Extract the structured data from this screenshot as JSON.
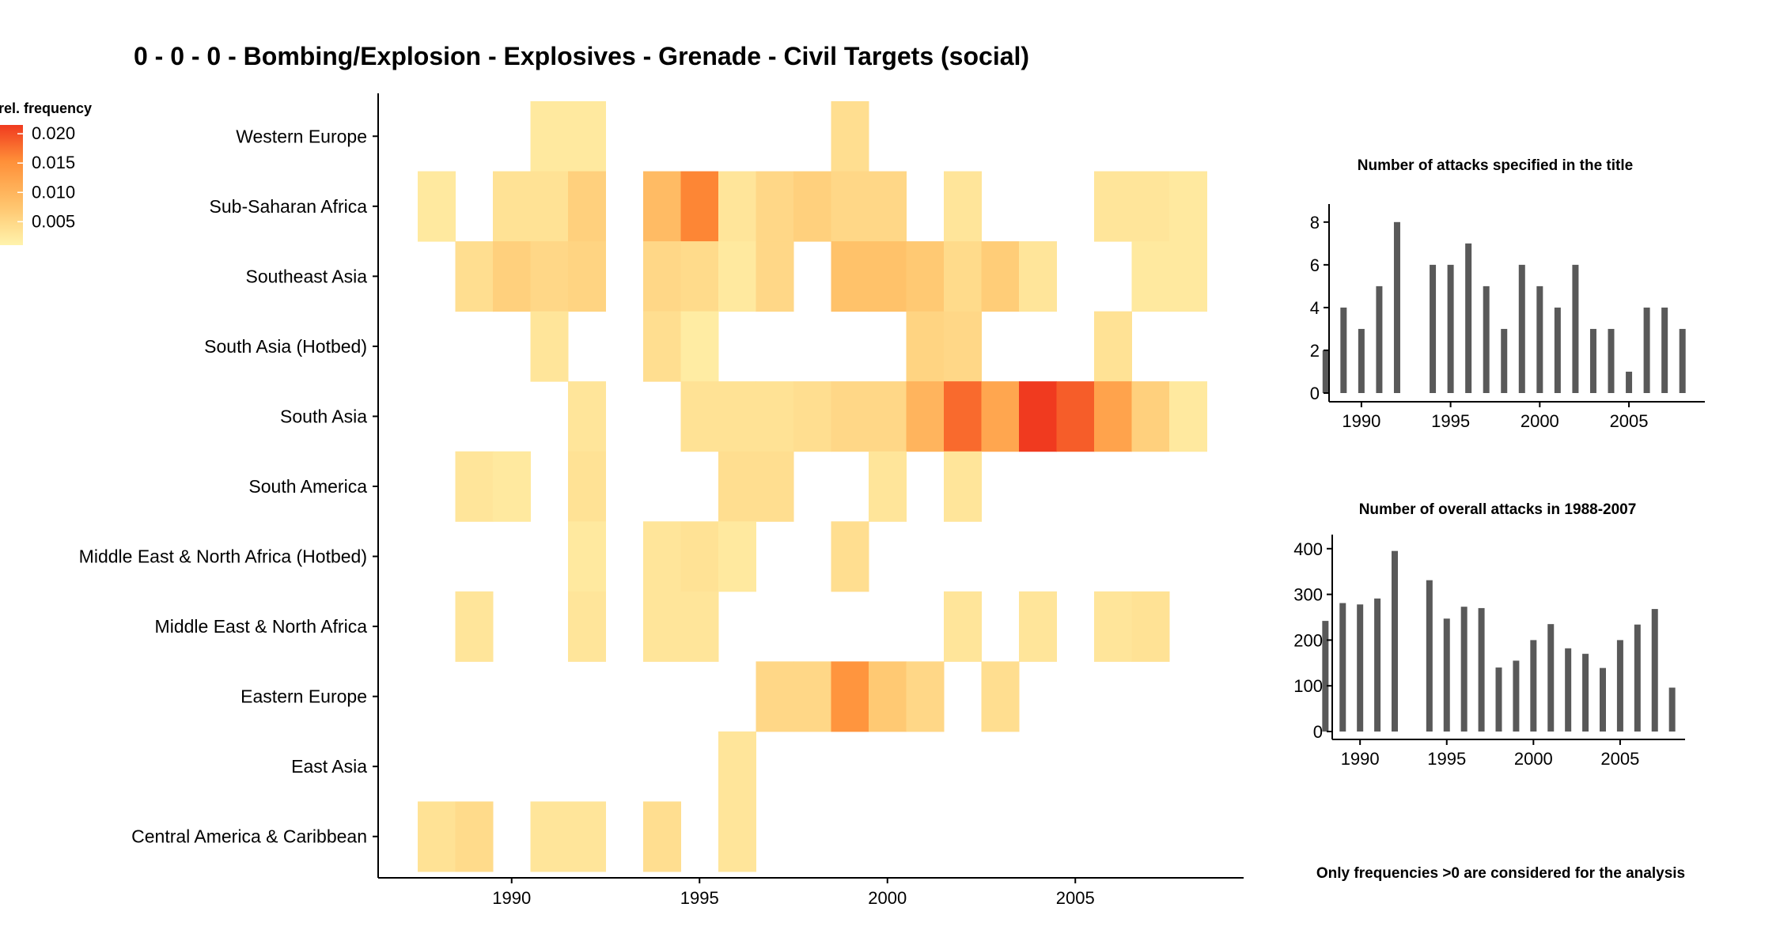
{
  "title": "0 - 0 - 0 - Bombing/Explosion - Explosives - Grenade - Civil Targets (social)",
  "footnote": "Only frequencies >0 are considered for the analysis",
  "colors": {
    "low": "#fff3ad",
    "mid": "#ffc46c",
    "high": "#ff8f38",
    "max": "#f03a1f",
    "bar": "#595959",
    "axis": "#000000"
  },
  "chart_data": [
    {
      "type": "heatmap",
      "name": "region-year-heatmap",
      "title": "0 - 0 - 0 - Bombing/Explosion - Explosives - Grenade - Civil Targets (social)",
      "x_range": [
        1988,
        2008
      ],
      "x_ticks": [
        1990,
        1995,
        2000,
        2005
      ],
      "legend": {
        "title": "rel. frequency",
        "position": "top-left",
        "ticks": [
          0.005,
          0.01,
          0.015,
          0.02
        ],
        "tick_labels": [
          "0.005",
          "0.010",
          "0.015",
          "0.020"
        ],
        "min": 0.001,
        "max": 0.0215
      },
      "regions": [
        "Western Europe",
        "Sub-Saharan Africa",
        "Southeast Asia",
        "South Asia (Hotbed)",
        "South Asia",
        "South America",
        "Middle East & North Africa (Hotbed)",
        "Middle East & North Africa",
        "Eastern Europe",
        "East Asia",
        "Central America & Caribbean"
      ],
      "cells": [
        {
          "region": "Western Europe",
          "year": 1991,
          "value": 0.0025
        },
        {
          "region": "Western Europe",
          "year": 1992,
          "value": 0.0025
        },
        {
          "region": "Western Europe",
          "year": 1999,
          "value": 0.004
        },
        {
          "region": "Sub-Saharan Africa",
          "year": 1988,
          "value": 0.0025
        },
        {
          "region": "Sub-Saharan Africa",
          "year": 1990,
          "value": 0.0035
        },
        {
          "region": "Sub-Saharan Africa",
          "year": 1991,
          "value": 0.0035
        },
        {
          "region": "Sub-Saharan Africa",
          "year": 1992,
          "value": 0.006
        },
        {
          "region": "Sub-Saharan Africa",
          "year": 1994,
          "value": 0.009
        },
        {
          "region": "Sub-Saharan Africa",
          "year": 1995,
          "value": 0.016
        },
        {
          "region": "Sub-Saharan Africa",
          "year": 1996,
          "value": 0.003
        },
        {
          "region": "Sub-Saharan Africa",
          "year": 1997,
          "value": 0.005
        },
        {
          "region": "Sub-Saharan Africa",
          "year": 1998,
          "value": 0.006
        },
        {
          "region": "Sub-Saharan Africa",
          "year": 1999,
          "value": 0.005
        },
        {
          "region": "Sub-Saharan Africa",
          "year": 2000,
          "value": 0.005
        },
        {
          "region": "Sub-Saharan Africa",
          "year": 2002,
          "value": 0.003
        },
        {
          "region": "Sub-Saharan Africa",
          "year": 2006,
          "value": 0.003
        },
        {
          "region": "Sub-Saharan Africa",
          "year": 2007,
          "value": 0.003
        },
        {
          "region": "Sub-Saharan Africa",
          "year": 2008,
          "value": 0.0025
        },
        {
          "region": "Southeast Asia",
          "year": 1989,
          "value": 0.004
        },
        {
          "region": "Southeast Asia",
          "year": 1990,
          "value": 0.006
        },
        {
          "region": "Southeast Asia",
          "year": 1991,
          "value": 0.005
        },
        {
          "region": "Southeast Asia",
          "year": 1992,
          "value": 0.0055
        },
        {
          "region": "Southeast Asia",
          "year": 1994,
          "value": 0.005
        },
        {
          "region": "Southeast Asia",
          "year": 1995,
          "value": 0.0045
        },
        {
          "region": "Southeast Asia",
          "year": 1996,
          "value": 0.0025
        },
        {
          "region": "Southeast Asia",
          "year": 1997,
          "value": 0.005
        },
        {
          "region": "Southeast Asia",
          "year": 1999,
          "value": 0.008
        },
        {
          "region": "Southeast Asia",
          "year": 2000,
          "value": 0.008
        },
        {
          "region": "Southeast Asia",
          "year": 2001,
          "value": 0.007
        },
        {
          "region": "Southeast Asia",
          "year": 2002,
          "value": 0.0045
        },
        {
          "region": "Southeast Asia",
          "year": 2003,
          "value": 0.0065
        },
        {
          "region": "Southeast Asia",
          "year": 2004,
          "value": 0.003
        },
        {
          "region": "Southeast Asia",
          "year": 2007,
          "value": 0.0025
        },
        {
          "region": "Southeast Asia",
          "year": 2008,
          "value": 0.0025
        },
        {
          "region": "South Asia (Hotbed)",
          "year": 1991,
          "value": 0.003
        },
        {
          "region": "South Asia (Hotbed)",
          "year": 1994,
          "value": 0.004
        },
        {
          "region": "South Asia (Hotbed)",
          "year": 1995,
          "value": 0.002
        },
        {
          "region": "South Asia (Hotbed)",
          "year": 2001,
          "value": 0.0055
        },
        {
          "region": "South Asia (Hotbed)",
          "year": 2002,
          "value": 0.005
        },
        {
          "region": "South Asia (Hotbed)",
          "year": 2006,
          "value": 0.0035
        },
        {
          "region": "South Asia",
          "year": 1992,
          "value": 0.003
        },
        {
          "region": "South Asia",
          "year": 1995,
          "value": 0.0035
        },
        {
          "region": "South Asia",
          "year": 1996,
          "value": 0.0035
        },
        {
          "region": "South Asia",
          "year": 1997,
          "value": 0.0035
        },
        {
          "region": "South Asia",
          "year": 1998,
          "value": 0.004
        },
        {
          "region": "South Asia",
          "year": 1999,
          "value": 0.005
        },
        {
          "region": "South Asia",
          "year": 2000,
          "value": 0.005
        },
        {
          "region": "South Asia",
          "year": 2001,
          "value": 0.01
        },
        {
          "region": "South Asia",
          "year": 2002,
          "value": 0.018
        },
        {
          "region": "South Asia",
          "year": 2003,
          "value": 0.012
        },
        {
          "region": "South Asia",
          "year": 2004,
          "value": 0.0215
        },
        {
          "region": "South Asia",
          "year": 2005,
          "value": 0.019
        },
        {
          "region": "South Asia",
          "year": 2006,
          "value": 0.0125
        },
        {
          "region": "South Asia",
          "year": 2007,
          "value": 0.006
        },
        {
          "region": "South Asia",
          "year": 2008,
          "value": 0.0025
        },
        {
          "region": "South America",
          "year": 1989,
          "value": 0.003
        },
        {
          "region": "South America",
          "year": 1990,
          "value": 0.0025
        },
        {
          "region": "South America",
          "year": 1992,
          "value": 0.0035
        },
        {
          "region": "South America",
          "year": 1996,
          "value": 0.004
        },
        {
          "region": "South America",
          "year": 1997,
          "value": 0.004
        },
        {
          "region": "South America",
          "year": 2000,
          "value": 0.003
        },
        {
          "region": "South America",
          "year": 2002,
          "value": 0.003
        },
        {
          "region": "Middle East & North Africa (Hotbed)",
          "year": 1992,
          "value": 0.0025
        },
        {
          "region": "Middle East & North Africa (Hotbed)",
          "year": 1994,
          "value": 0.003
        },
        {
          "region": "Middle East & North Africa (Hotbed)",
          "year": 1995,
          "value": 0.0035
        },
        {
          "region": "Middle East & North Africa (Hotbed)",
          "year": 1996,
          "value": 0.0025
        },
        {
          "region": "Middle East & North Africa (Hotbed)",
          "year": 1999,
          "value": 0.004
        },
        {
          "region": "Middle East & North Africa",
          "year": 1989,
          "value": 0.003
        },
        {
          "region": "Middle East & North Africa",
          "year": 1992,
          "value": 0.003
        },
        {
          "region": "Middle East & North Africa",
          "year": 1994,
          "value": 0.003
        },
        {
          "region": "Middle East & North Africa",
          "year": 1995,
          "value": 0.003
        },
        {
          "region": "Middle East & North Africa",
          "year": 2002,
          "value": 0.003
        },
        {
          "region": "Middle East & North Africa",
          "year": 2004,
          "value": 0.003
        },
        {
          "region": "Middle East & North Africa",
          "year": 2006,
          "value": 0.003
        },
        {
          "region": "Middle East & North Africa",
          "year": 2007,
          "value": 0.0035
        },
        {
          "region": "Eastern Europe",
          "year": 1997,
          "value": 0.005
        },
        {
          "region": "Eastern Europe",
          "year": 1998,
          "value": 0.005
        },
        {
          "region": "Eastern Europe",
          "year": 1999,
          "value": 0.0145
        },
        {
          "region": "Eastern Europe",
          "year": 2000,
          "value": 0.007
        },
        {
          "region": "Eastern Europe",
          "year": 2001,
          "value": 0.005
        },
        {
          "region": "Eastern Europe",
          "year": 2003,
          "value": 0.004
        },
        {
          "region": "East Asia",
          "year": 1996,
          "value": 0.003
        },
        {
          "region": "Central America & Caribbean",
          "year": 1988,
          "value": 0.0035
        },
        {
          "region": "Central America & Caribbean",
          "year": 1989,
          "value": 0.0045
        },
        {
          "region": "Central America & Caribbean",
          "year": 1991,
          "value": 0.003
        },
        {
          "region": "Central America & Caribbean",
          "year": 1992,
          "value": 0.003
        },
        {
          "region": "Central America & Caribbean",
          "year": 1994,
          "value": 0.004
        },
        {
          "region": "Central America & Caribbean",
          "year": 1996,
          "value": 0.003
        }
      ]
    },
    {
      "type": "bar",
      "name": "attacks-title-bar-chart",
      "title": "Number of attacks specified in the title",
      "x": [
        1988,
        1989,
        1990,
        1991,
        1992,
        1994,
        1995,
        1996,
        1997,
        1998,
        1999,
        2000,
        2001,
        2002,
        2003,
        2004,
        2005,
        2006,
        2007,
        2008
      ],
      "values": [
        2,
        4,
        3,
        5,
        8,
        6,
        6,
        7,
        5,
        3,
        6,
        5,
        4,
        6,
        3,
        3,
        1,
        4,
        4,
        3
      ],
      "xlim": [
        1987.3,
        2009.3
      ],
      "ylim": [
        0,
        8.4
      ],
      "x_ticks": [
        1990,
        1995,
        2000,
        2005
      ],
      "y_ticks": [
        0,
        2,
        4,
        6,
        8
      ]
    },
    {
      "type": "bar",
      "name": "attacks-overall-bar-chart",
      "title": "Number of overall attacks in 1988-2007",
      "x": [
        1988,
        1989,
        1990,
        1991,
        1992,
        1994,
        1995,
        1996,
        1997,
        1998,
        1999,
        2000,
        2001,
        2002,
        2003,
        2004,
        2005,
        2006,
        2007,
        2008
      ],
      "values": [
        242,
        281,
        278,
        291,
        395,
        331,
        247,
        273,
        270,
        140,
        155,
        200,
        235,
        182,
        170,
        139,
        200,
        234,
        268,
        96
      ],
      "xlim": [
        1987.3,
        2008.7
      ],
      "ylim": [
        0,
        410
      ],
      "x_ticks": [
        1990,
        1995,
        2000,
        2005
      ],
      "y_ticks": [
        0,
        100,
        200,
        300,
        400
      ]
    }
  ]
}
